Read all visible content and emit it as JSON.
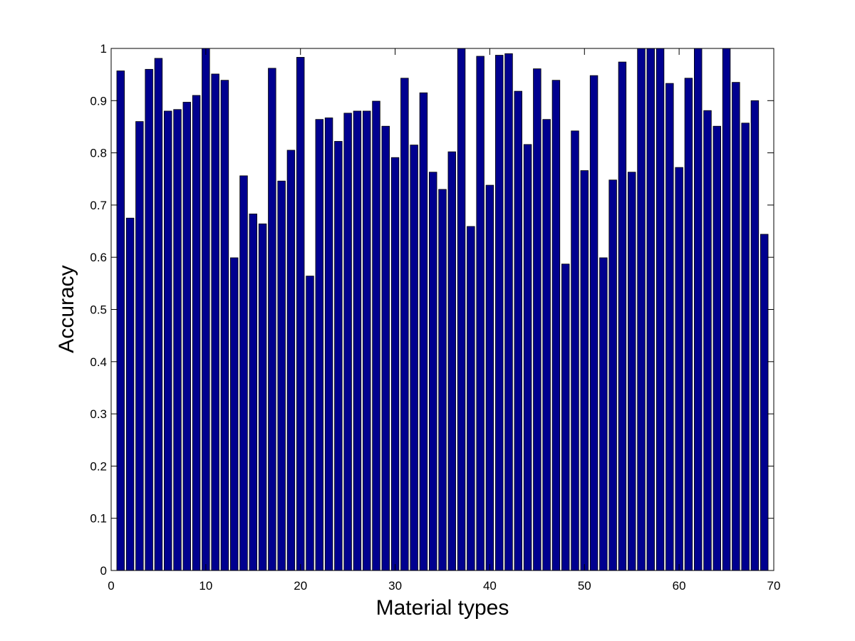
{
  "chart_data": {
    "type": "bar",
    "title": "",
    "xlabel": "Material types",
    "ylabel": "Accuracy",
    "xlim": [
      0,
      70
    ],
    "ylim": [
      0,
      1
    ],
    "xticks": [
      0,
      10,
      20,
      30,
      40,
      50,
      60,
      70
    ],
    "yticks": [
      0,
      0.1,
      0.2,
      0.3,
      0.4,
      0.5,
      0.6,
      0.7,
      0.8,
      0.9,
      1
    ],
    "x": [
      1,
      2,
      3,
      4,
      5,
      6,
      7,
      8,
      9,
      10,
      11,
      12,
      13,
      14,
      15,
      16,
      17,
      18,
      19,
      20,
      21,
      22,
      23,
      24,
      25,
      26,
      27,
      28,
      29,
      30,
      31,
      32,
      33,
      34,
      35,
      36,
      37,
      38,
      39,
      40,
      41,
      42,
      43,
      44,
      45,
      46,
      47,
      48,
      49,
      50,
      51,
      52,
      53,
      54,
      55,
      56,
      57,
      58,
      59,
      60,
      61,
      62,
      63,
      64,
      65,
      66,
      67,
      68,
      69
    ],
    "values": [
      0.957,
      0.675,
      0.86,
      0.96,
      0.981,
      0.88,
      0.883,
      0.897,
      0.91,
      1.0,
      0.951,
      0.939,
      0.599,
      0.756,
      0.683,
      0.664,
      0.962,
      0.746,
      0.805,
      0.983,
      0.564,
      0.864,
      0.867,
      0.822,
      0.876,
      0.88,
      0.88,
      0.899,
      0.851,
      0.791,
      0.943,
      0.815,
      0.915,
      0.763,
      0.73,
      0.802,
      1.0,
      0.659,
      0.985,
      0.738,
      0.987,
      0.99,
      0.918,
      0.816,
      0.961,
      0.864,
      0.939,
      0.587,
      0.842,
      0.766,
      0.948,
      0.599,
      0.748,
      0.974,
      0.763,
      1.0,
      1.0,
      1.0,
      0.933,
      0.772,
      0.943,
      1.0,
      0.881,
      0.851,
      1.0,
      0.935,
      0.857,
      0.9,
      0.644
    ],
    "bar_color": "#00008f",
    "grid": false,
    "legend": "none"
  }
}
